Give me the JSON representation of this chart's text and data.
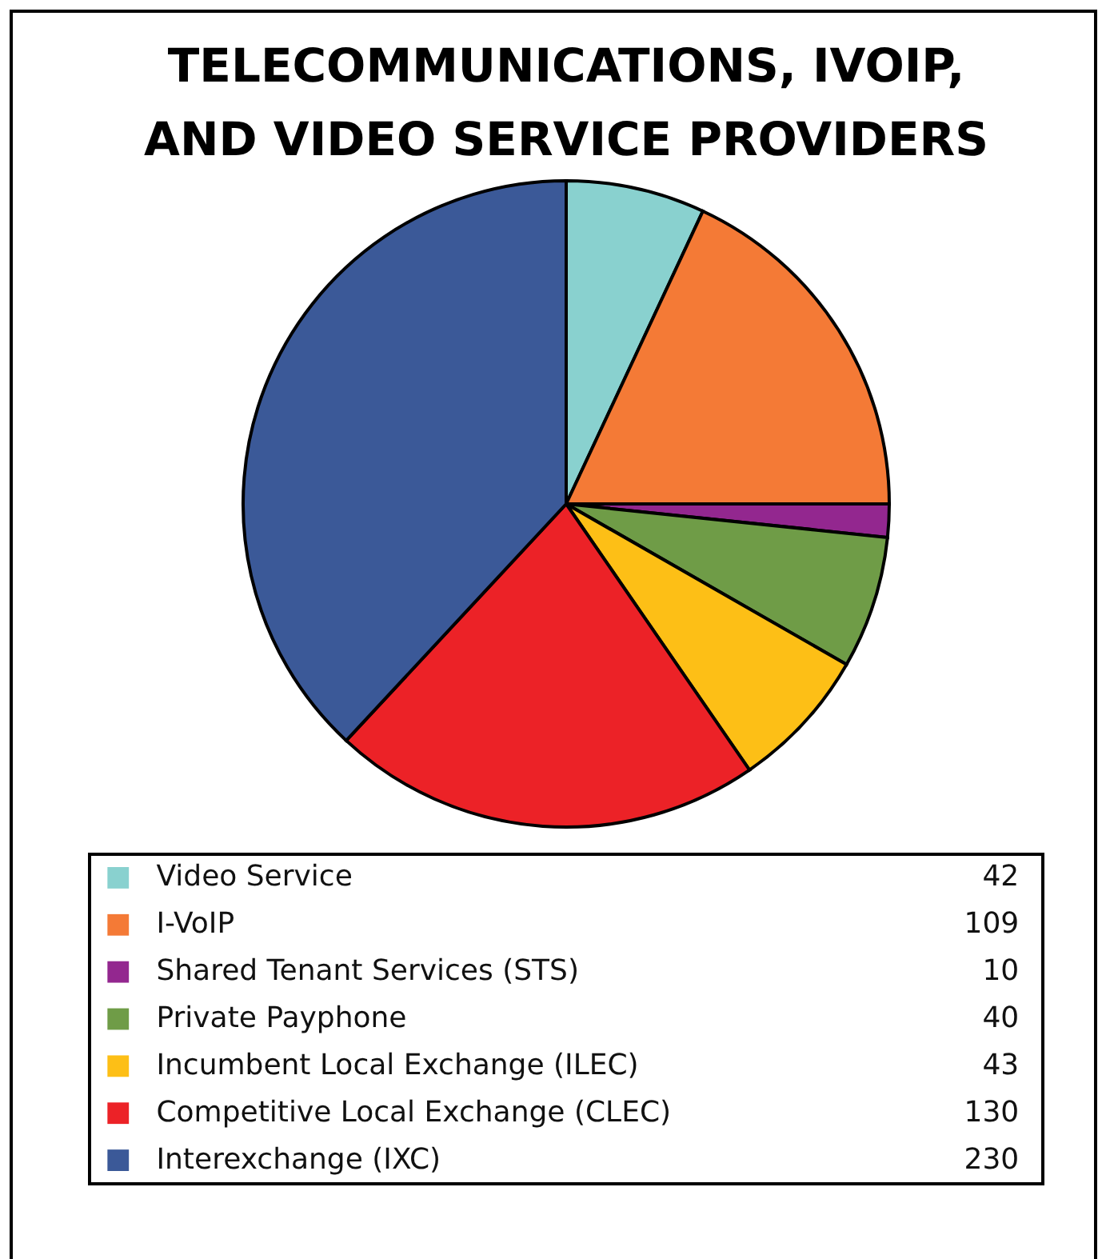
{
  "chart_data": {
    "type": "pie",
    "title": "TELECOMMUNICATIONS, IVOIP, AND VIDEO SERVICE PROVIDERS",
    "categories": [
      "Video Service",
      "I-VoIP",
      "Shared Tenant Services (STS)",
      "Private Payphone",
      "Incumbent Local Exchange (ILEC)",
      "Competitive Local Exchange (CLEC)",
      "Interexchange (IXC)"
    ],
    "values": [
      42,
      109,
      10,
      40,
      43,
      130,
      230
    ],
    "colors": [
      "#89d1cf",
      "#f47a36",
      "#93278f",
      "#6f9c47",
      "#fdbf16",
      "#ec2227",
      "#3b5998"
    ],
    "legend": "bottom",
    "data_labels": true
  }
}
